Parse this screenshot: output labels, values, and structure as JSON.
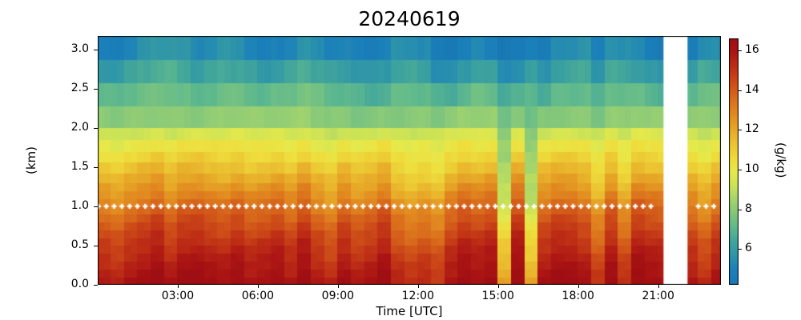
{
  "figure": {
    "title": "20240619"
  },
  "axes": {
    "xlabel": "Time [UTC]",
    "ylabel": "(km)",
    "x_ticks": [
      {
        "label": "03:00",
        "hour": 3
      },
      {
        "label": "06:00",
        "hour": 6
      },
      {
        "label": "09:00",
        "hour": 9
      },
      {
        "label": "12:00",
        "hour": 12
      },
      {
        "label": "15:00",
        "hour": 15
      },
      {
        "label": "18:00",
        "hour": 18
      },
      {
        "label": "21:00",
        "hour": 21
      }
    ],
    "y_ticks": [
      {
        "label": "0.0",
        "km": 0.0
      },
      {
        "label": "0.5",
        "km": 0.5
      },
      {
        "label": "1.0",
        "km": 1.0
      },
      {
        "label": "1.5",
        "km": 1.5
      },
      {
        "label": "2.0",
        "km": 2.0
      },
      {
        "label": "2.5",
        "km": 2.5
      },
      {
        "label": "3.0",
        "km": 3.0
      }
    ]
  },
  "colorbar": {
    "label": "(g/kg)",
    "vmin": 4.2,
    "vmax": 16.6,
    "ticks": [
      {
        "label": "6",
        "value": 6
      },
      {
        "label": "8",
        "value": 8
      },
      {
        "label": "10",
        "value": 10
      },
      {
        "label": "12",
        "value": 12
      },
      {
        "label": "14",
        "value": 14
      },
      {
        "label": "16",
        "value": 16
      }
    ],
    "stops": [
      [
        4.2,
        "#1878b4"
      ],
      [
        5.0,
        "#1b80ba"
      ],
      [
        5.7,
        "#2e95a9"
      ],
      [
        6.4,
        "#40a49c"
      ],
      [
        7.1,
        "#5fb98d"
      ],
      [
        7.8,
        "#82c67c"
      ],
      [
        8.5,
        "#a5d56c"
      ],
      [
        9.2,
        "#cbe357"
      ],
      [
        9.9,
        "#e6e94b"
      ],
      [
        10.5,
        "#eede3d"
      ],
      [
        11.2,
        "#ecc733"
      ],
      [
        12.0,
        "#e7a928"
      ],
      [
        12.8,
        "#e18a20"
      ],
      [
        13.6,
        "#d96c1c"
      ],
      [
        14.4,
        "#cd4b18"
      ],
      [
        15.2,
        "#bd2d15"
      ],
      [
        16.0,
        "#ab1414"
      ],
      [
        16.6,
        "#9f0e12"
      ]
    ]
  },
  "chart_data": {
    "type": "heatmap",
    "title": "20240619",
    "xlabel": "Time [UTC]",
    "ylabel": "(km)",
    "values_label": "(g/kg)",
    "x_range_hours": [
      0,
      23.35
    ],
    "y_range_km": [
      0,
      3.17
    ],
    "value_range_g_per_kg": [
      4.2,
      16.6
    ],
    "height_boundaries_km": [
      0,
      0.1,
      0.2,
      0.3,
      0.4,
      0.5,
      0.6,
      0.7,
      0.8,
      0.9,
      1.0,
      1.1,
      1.2,
      1.3,
      1.42,
      1.56,
      1.7,
      1.85,
      2.0,
      2.28,
      2.57,
      2.87,
      3.17
    ],
    "base_profile": {
      "height_km": [
        0,
        0.3,
        0.6,
        0.9,
        1.0,
        1.2,
        1.4,
        1.6,
        1.8,
        2.0,
        2.15,
        2.4,
        2.7,
        3.0,
        3.17
      ],
      "value_g_per_kg": [
        15.9,
        15.2,
        14.4,
        13.4,
        13.0,
        12.2,
        11.4,
        10.6,
        9.9,
        8.9,
        7.9,
        7.2,
        6.2,
        5.2,
        4.9
      ]
    },
    "column_step_h": 0.5,
    "column_anomaly_low_g_per_kg": [
      0.1,
      -0.2,
      0.3,
      0.6,
      1.0,
      0.2,
      0.8,
      0.9,
      0.6,
      0.4,
      0.8,
      0.3,
      0.5,
      0.8,
      0.2,
      1.0,
      0.1,
      -0.4,
      0.6,
      0.0,
      0.3,
      0.9,
      -0.3,
      -0.7,
      -0.4,
      -0.8,
      0.3,
      0.9,
      0.6,
      0.9,
      -3.6,
      1.2,
      -3.8,
      0.4,
      0.9,
      0.8,
      0.4,
      -0.8,
      0.8,
      -0.6,
      1.0,
      0.7,
      0.6,
      0.0,
      0.2,
      -0.5,
      0.4
    ],
    "column_anomaly_top_g_per_kg": [
      -0.3,
      -0.4,
      0.0,
      0.3,
      0.5,
      0.6,
      0.4,
      0.0,
      0.3,
      0.6,
      0.5,
      0.2,
      -0.2,
      0.0,
      0.2,
      0.5,
      0.2,
      -0.1,
      -0.2,
      -0.4,
      -0.5,
      -0.3,
      0.3,
      0.4,
      0.2,
      -0.5,
      -0.6,
      -0.2,
      0.2,
      0.0,
      -0.9,
      -0.7,
      -0.2,
      -0.7,
      0.0,
      0.2,
      0.4,
      -0.3,
      0.5,
      0.4,
      0.2,
      -0.2,
      -0.5,
      0.0,
      -0.3,
      0.3,
      0.2
    ],
    "anomaly_low_full_below_km": 1.1,
    "anomaly_low_zero_above_km": 2.3,
    "anomaly_top_zero_below_km": 2.0,
    "anomaly_top_full_above_km": 2.6,
    "missing_data_hours": [
      [
        21.2,
        22.1
      ]
    ],
    "dotted_line": {
      "height_km": 1.0,
      "marker": "white-plus",
      "spacing_h": 0.2915,
      "segments_h": [
        [
          0.03,
          20.8
        ],
        [
          22.5,
          23.28
        ]
      ]
    }
  }
}
